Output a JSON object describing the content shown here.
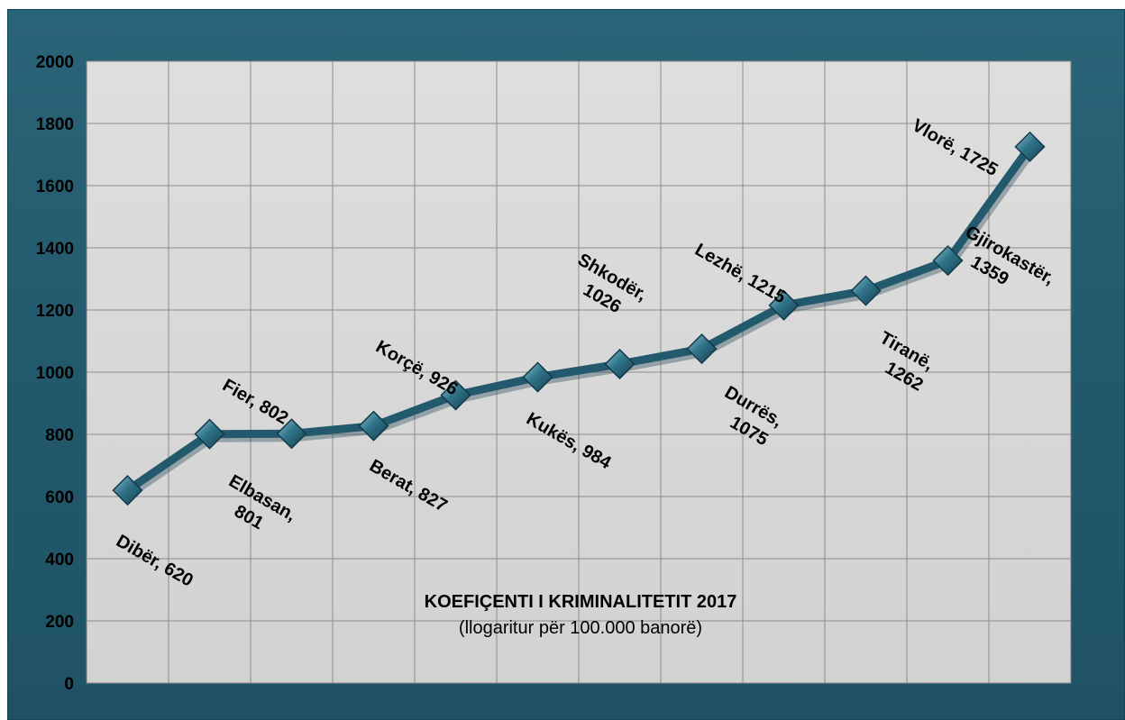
{
  "chart_data": {
    "type": "line",
    "title": "KOEFIÇENTI I KRIMINALITETIT 2017",
    "subtitle": "(llogaritur për 100.000  banorë)",
    "categories": [
      "Dibër",
      "Elbasan,",
      "Fier,",
      "Berat,",
      "Korçë,",
      "Kukës,",
      "Shkodër,",
      "Durrës,",
      "Lezhë,",
      "Tiranë,",
      "Gjirokastër,",
      "Vlorë,"
    ],
    "data_labels": [
      [
        "Dibër, 620"
      ],
      [
        "Elbasan,",
        "801"
      ],
      [
        "Fier, 802"
      ],
      [
        "Berat, 827"
      ],
      [
        "Korçë, 926"
      ],
      [
        "Kukës, 984"
      ],
      [
        "Shkodër,",
        "1026"
      ],
      [
        "Durrës,",
        "1075"
      ],
      [
        "Lezhë, 1215"
      ],
      [
        "Tiranë,",
        "1262"
      ],
      [
        "Gjirokastër,",
        "1359"
      ],
      [
        "Vlorë, 1725"
      ]
    ],
    "values": [
      620,
      801,
      802,
      827,
      926,
      984,
      1026,
      1075,
      1215,
      1262,
      1359,
      1725
    ],
    "ylim": [
      0,
      2000
    ],
    "yticks": [
      "0",
      "200",
      "400",
      "600",
      "800",
      "1000",
      "1200",
      "1400",
      "1600",
      "1800",
      "2000"
    ],
    "grid": true,
    "legend": "none",
    "colors": {
      "frame": "#23596c",
      "plot_area": "#d9d9d9",
      "line": "#23596c",
      "marker": "#2c6a80",
      "gridline": "#8c8c8c"
    }
  }
}
